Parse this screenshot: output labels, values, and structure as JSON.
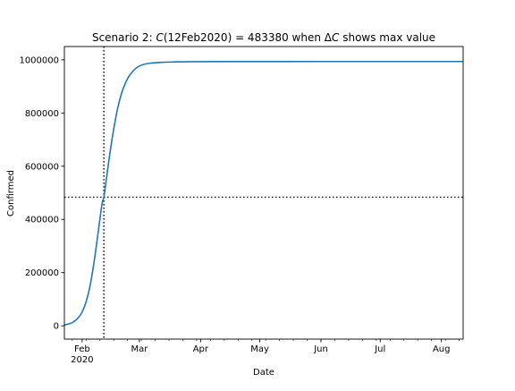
{
  "chart_data": {
    "type": "line",
    "title": "Scenario 2: C(12Feb2020) = 483380 when ΔC shows max value",
    "title_parts": {
      "prefix": "Scenario 2: ",
      "c": "C",
      "arg": "(12Feb2020)",
      "eq": " = 483380 when ",
      "delta": "Δ",
      "c2": "C",
      "suffix": " shows max value"
    },
    "xlabel": "Date",
    "ylabel": "Confirmed",
    "x_axis_type": "date",
    "xlim": [
      "2020-01-23",
      "2020-08-12"
    ],
    "ylim": [
      -50000,
      1050000
    ],
    "grid": false,
    "x_ticks": [
      {
        "label": "Feb",
        "sublabel": "2020",
        "date": "2020-02-01"
      },
      {
        "label": "Mar",
        "sublabel": "",
        "date": "2020-03-01"
      },
      {
        "label": "Apr",
        "sublabel": "",
        "date": "2020-04-01"
      },
      {
        "label": "May",
        "sublabel": "",
        "date": "2020-05-01"
      },
      {
        "label": "Jun",
        "sublabel": "",
        "date": "2020-06-01"
      },
      {
        "label": "Jul",
        "sublabel": "",
        "date": "2020-07-01"
      },
      {
        "label": "Aug",
        "sublabel": "",
        "date": "2020-08-01"
      }
    ],
    "y_ticks": [
      {
        "label": "0",
        "value": 0
      },
      {
        "label": "200000",
        "value": 200000
      },
      {
        "label": "400000",
        "value": 400000
      },
      {
        "label": "600000",
        "value": 600000
      },
      {
        "label": "800000",
        "value": 800000
      },
      {
        "label": "1000000",
        "value": 1000000
      }
    ],
    "reference_lines": [
      {
        "orientation": "vertical",
        "x": "2020-02-12",
        "style": "dotted",
        "color": "#000000"
      },
      {
        "orientation": "horizontal",
        "y": 483380,
        "style": "dotted",
        "color": "#000000"
      }
    ],
    "series": [
      {
        "color": "#1f77b4",
        "x": [
          "2020-01-23",
          "2020-01-27",
          "2020-01-30",
          "2020-02-01",
          "2020-02-03",
          "2020-02-05",
          "2020-02-07",
          "2020-02-09",
          "2020-02-11",
          "2020-02-12",
          "2020-02-13",
          "2020-02-15",
          "2020-02-17",
          "2020-02-19",
          "2020-02-21",
          "2020-02-23",
          "2020-02-25",
          "2020-02-28",
          "2020-03-02",
          "2020-03-06",
          "2020-03-11",
          "2020-03-18",
          "2020-03-28",
          "2020-04-15",
          "2020-05-15",
          "2020-06-15",
          "2020-07-15",
          "2020-08-12"
        ],
        "y": [
          3000,
          12000,
          30000,
          52000,
          90000,
          150000,
          238000,
          345000,
          455000,
          483380,
          537000,
          645000,
          740000,
          818000,
          875000,
          914000,
          941000,
          967000,
          980000,
          987000,
          990000,
          992000,
          993000,
          993500,
          993600,
          993700,
          993700,
          993700
        ]
      }
    ]
  }
}
